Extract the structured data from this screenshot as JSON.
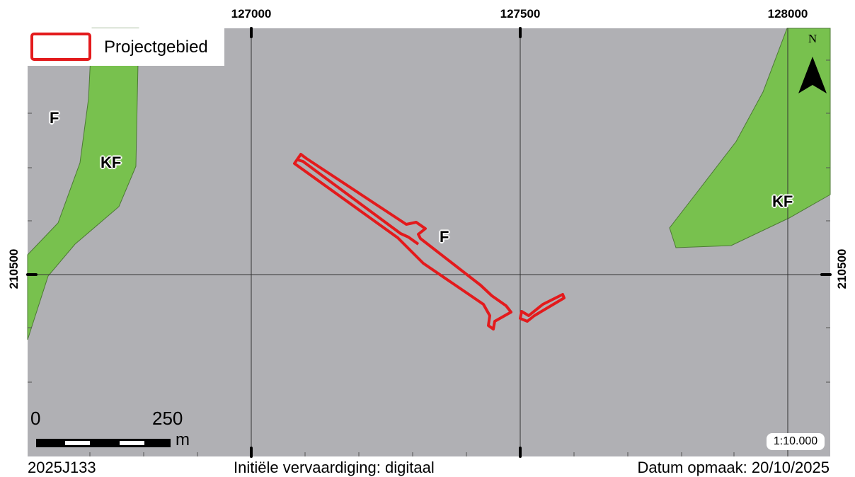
{
  "legend": {
    "label": "Projectgebied",
    "color": "#e31a1c"
  },
  "grid": {
    "x_labels": [
      "127000",
      "127500",
      "128000"
    ],
    "y_label": "210500"
  },
  "zones": {
    "fill_color": "#b0b0b4",
    "green_color": "#78c14e",
    "labels": [
      "F",
      "KF",
      "F",
      "KF"
    ]
  },
  "north_arrow": {
    "label": "N"
  },
  "scale_bar": {
    "start": "0",
    "end": "250",
    "unit": "m",
    "ratio": "1:10.000"
  },
  "footer": {
    "project_code": "2025J133",
    "production": "Initiële vervaardiging: digitaal",
    "date": "Datum opmaak: 20/10/2025"
  }
}
